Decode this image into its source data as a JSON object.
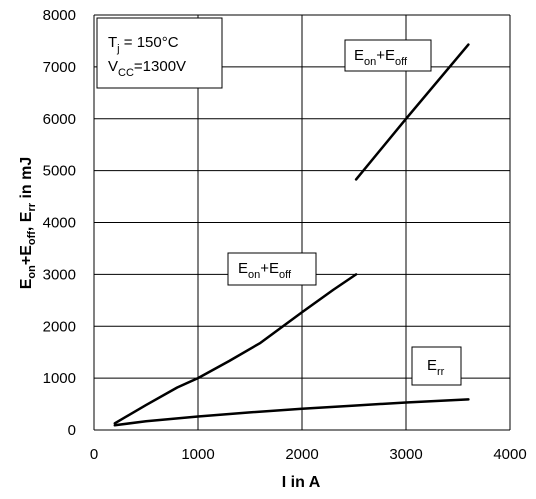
{
  "chart_data": {
    "type": "line",
    "title": "",
    "xlabel": "I in A",
    "ylabel_parts": [
      "E",
      "on",
      "+E",
      "off",
      ", E",
      "rr",
      " in mJ"
    ],
    "xlim": [
      0,
      4000
    ],
    "ylim": [
      0,
      8000
    ],
    "x_ticks": [
      0,
      1000,
      2000,
      3000,
      4000
    ],
    "y_ticks": [
      0,
      1000,
      2000,
      3000,
      4000,
      5000,
      6000,
      7000,
      8000
    ],
    "x_tick_labels": [
      "0",
      "1000",
      "2000",
      "3000",
      "4000"
    ],
    "y_tick_labels": [
      "0",
      "1000",
      "2000",
      "3000",
      "4000",
      "5000",
      "6000",
      "7000",
      "8000"
    ],
    "grid": true,
    "series": [
      {
        "key": "eon_eoff_low",
        "x": [
          200,
          500,
          800,
          1000,
          1300,
          1600,
          2000,
          2300,
          2520
        ],
        "y": [
          130,
          480,
          820,
          1000,
          1330,
          1680,
          2270,
          2700,
          3000
        ]
      },
      {
        "key": "eon_eoff_high",
        "x": [
          2520,
          3000,
          3600
        ],
        "y": [
          4830,
          6000,
          7430
        ]
      },
      {
        "key": "err",
        "x": [
          200,
          500,
          1000,
          1500,
          2000,
          2500,
          3000,
          3600
        ],
        "y": [
          90,
          170,
          260,
          340,
          410,
          470,
          530,
          590
        ]
      }
    ],
    "annotations": {
      "conditions": {
        "tj_main": "T",
        "tj_sub": "j",
        "tj_value": " = 150°C",
        "vcc_main": "V",
        "vcc_sub": "CC",
        "vcc_value": "=1300V"
      },
      "label_eon_eoff_high": {
        "p1": "E",
        "s1": "on",
        "p2": "+E",
        "s2": "off"
      },
      "label_eon_eoff_low": {
        "p1": "E",
        "s1": "on",
        "p2": "+E",
        "s2": "off"
      },
      "label_err": {
        "p1": "E",
        "s1": "rr"
      }
    }
  }
}
